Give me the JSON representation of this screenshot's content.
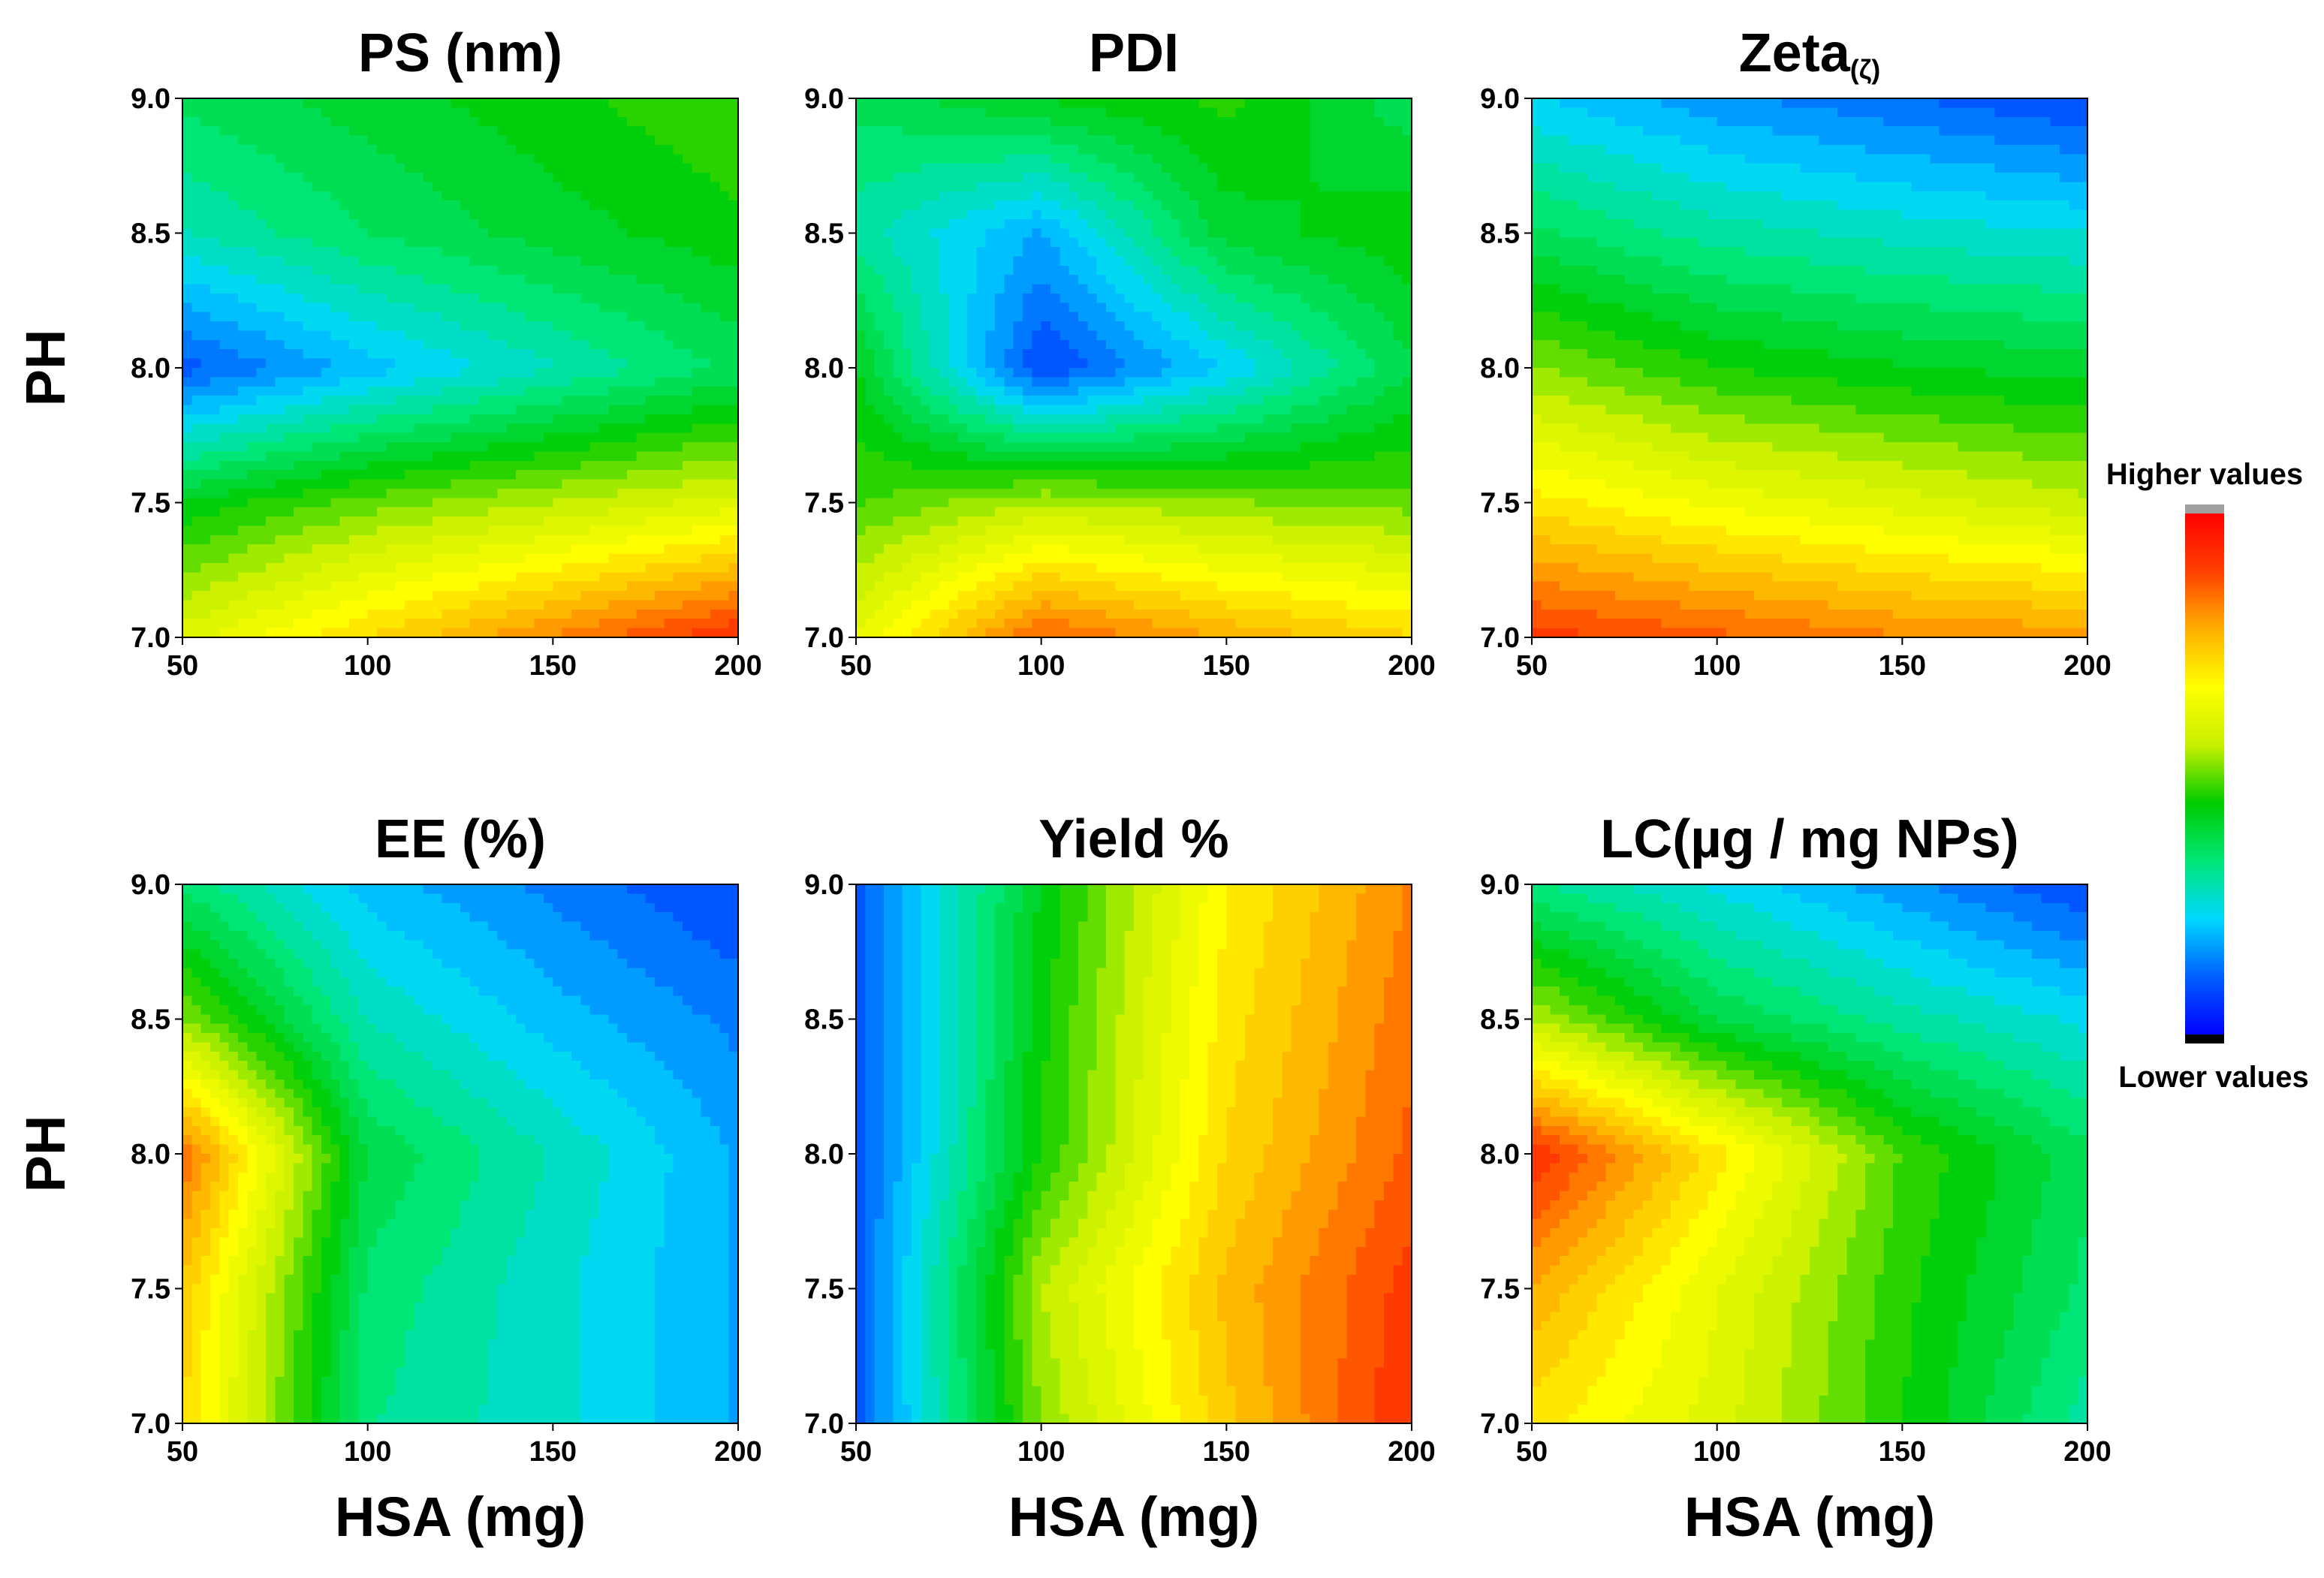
{
  "chart_data": [
    {
      "type": "heatmap",
      "id": "ps",
      "title": "PS (nm)",
      "xlabel": "",
      "ylabel": "PH",
      "x": [
        50,
        100,
        150,
        200
      ],
      "y": [
        7.0,
        7.5,
        8.0,
        8.5,
        9.0
      ],
      "xticks": [
        "50",
        "100",
        "150",
        "200"
      ],
      "yticks": [
        "7.0",
        "7.5",
        "8.0",
        "8.5",
        "9.0"
      ],
      "xlim": [
        50,
        200
      ],
      "ylim": [
        7.0,
        9.0
      ],
      "z": [
        [
          0.6,
          0.72,
          0.82,
          0.92
        ],
        [
          0.42,
          0.5,
          0.55,
          0.6
        ],
        [
          0.1,
          0.2,
          0.28,
          0.36
        ],
        [
          0.28,
          0.35,
          0.4,
          0.44
        ],
        [
          0.36,
          0.4,
          0.44,
          0.48
        ]
      ]
    },
    {
      "type": "heatmap",
      "id": "pdi",
      "title": "PDI",
      "xlabel": "",
      "ylabel": "",
      "x": [
        50,
        100,
        150,
        200
      ],
      "y": [
        7.0,
        7.5,
        8.0,
        8.5,
        9.0
      ],
      "xticks": [
        "50",
        "100",
        "150",
        "200"
      ],
      "yticks": [
        "7.0",
        "7.5",
        "8.0",
        "8.5",
        "9.0"
      ],
      "xlim": [
        50,
        200
      ],
      "ylim": [
        7.0,
        9.0
      ],
      "z": [
        [
          0.62,
          0.86,
          0.78,
          0.72
        ],
        [
          0.48,
          0.55,
          0.52,
          0.5
        ],
        [
          0.42,
          0.08,
          0.22,
          0.38
        ],
        [
          0.3,
          0.18,
          0.4,
          0.44
        ],
        [
          0.36,
          0.42,
          0.46,
          0.36
        ]
      ]
    },
    {
      "type": "heatmap",
      "id": "zeta",
      "title": "Zeta",
      "title_sub": "(ζ)",
      "xlabel": "",
      "ylabel": "",
      "x": [
        50,
        100,
        150,
        200
      ],
      "y": [
        7.0,
        7.5,
        8.0,
        8.5,
        9.0
      ],
      "xticks": [
        "50",
        "100",
        "150",
        "200"
      ],
      "yticks": [
        "7.0",
        "7.5",
        "8.0",
        "8.5",
        "9.0"
      ],
      "xlim": [
        50,
        200
      ],
      "ylim": [
        7.0,
        9.0
      ],
      "z": [
        [
          0.9,
          0.86,
          0.82,
          0.8
        ],
        [
          0.7,
          0.64,
          0.6,
          0.56
        ],
        [
          0.52,
          0.45,
          0.42,
          0.4
        ],
        [
          0.36,
          0.3,
          0.27,
          0.25
        ],
        [
          0.22,
          0.16,
          0.12,
          0.08
        ]
      ]
    },
    {
      "type": "heatmap",
      "id": "ee",
      "title": "EE (%)",
      "xlabel": "HSA (mg)",
      "ylabel": "PH",
      "x": [
        50,
        100,
        150,
        200
      ],
      "y": [
        7.0,
        7.5,
        8.0,
        8.5,
        9.0
      ],
      "xticks": [
        "50",
        "100",
        "150",
        "200"
      ],
      "yticks": [
        "7.0",
        "7.5",
        "8.0",
        "8.5",
        "9.0"
      ],
      "xlim": [
        50,
        200
      ],
      "ylim": [
        7.0,
        9.0
      ],
      "z": [
        [
          0.72,
          0.32,
          0.26,
          0.18
        ],
        [
          0.74,
          0.34,
          0.26,
          0.18
        ],
        [
          0.85,
          0.38,
          0.28,
          0.18
        ],
        [
          0.52,
          0.28,
          0.2,
          0.14
        ],
        [
          0.34,
          0.2,
          0.14,
          0.08
        ]
      ]
    },
    {
      "type": "heatmap",
      "id": "yield",
      "title": "Yield %",
      "xlabel": "HSA (mg)",
      "ylabel": "",
      "x": [
        50,
        100,
        150,
        200
      ],
      "y": [
        7.0,
        7.5,
        8.0,
        8.5,
        9.0
      ],
      "xticks": [
        "50",
        "100",
        "150",
        "200"
      ],
      "yticks": [
        "7.0",
        "7.5",
        "8.0",
        "8.5",
        "9.0"
      ],
      "xlim": [
        50,
        200
      ],
      "ylim": [
        7.0,
        9.0
      ],
      "z": [
        [
          0.1,
          0.52,
          0.74,
          0.92
        ],
        [
          0.1,
          0.55,
          0.76,
          0.9
        ],
        [
          0.1,
          0.45,
          0.72,
          0.86
        ],
        [
          0.1,
          0.44,
          0.7,
          0.84
        ],
        [
          0.1,
          0.42,
          0.68,
          0.82
        ]
      ]
    },
    {
      "type": "heatmap",
      "id": "lc",
      "title": "LC(µg / mg NPs)",
      "xlabel": "HSA (mg)",
      "ylabel": "",
      "x": [
        50,
        100,
        150,
        200
      ],
      "y": [
        7.0,
        7.5,
        8.0,
        8.5,
        9.0
      ],
      "xticks": [
        "50",
        "100",
        "150",
        "200"
      ],
      "yticks": [
        "7.0",
        "7.5",
        "8.0",
        "8.5",
        "9.0"
      ],
      "xlim": [
        50,
        200
      ],
      "ylim": [
        7.0,
        9.0
      ],
      "z": [
        [
          0.7,
          0.6,
          0.45,
          0.3
        ],
        [
          0.78,
          0.62,
          0.46,
          0.34
        ],
        [
          0.92,
          0.7,
          0.48,
          0.36
        ],
        [
          0.55,
          0.38,
          0.3,
          0.24
        ],
        [
          0.32,
          0.24,
          0.16,
          0.08
        ]
      ]
    }
  ],
  "legend": {
    "high_label": "Higher values",
    "low_label": "Lower values"
  },
  "colors": {
    "colormap": [
      "#0000ff",
      "#0060ff",
      "#00d8ff",
      "#00e676",
      "#00cc00",
      "#c8f000",
      "#ffff00",
      "#ffb000",
      "#ff4000",
      "#ff0000"
    ],
    "legend_top_cap": "#a0a0a0",
    "legend_bottom_cap": "#000000"
  }
}
